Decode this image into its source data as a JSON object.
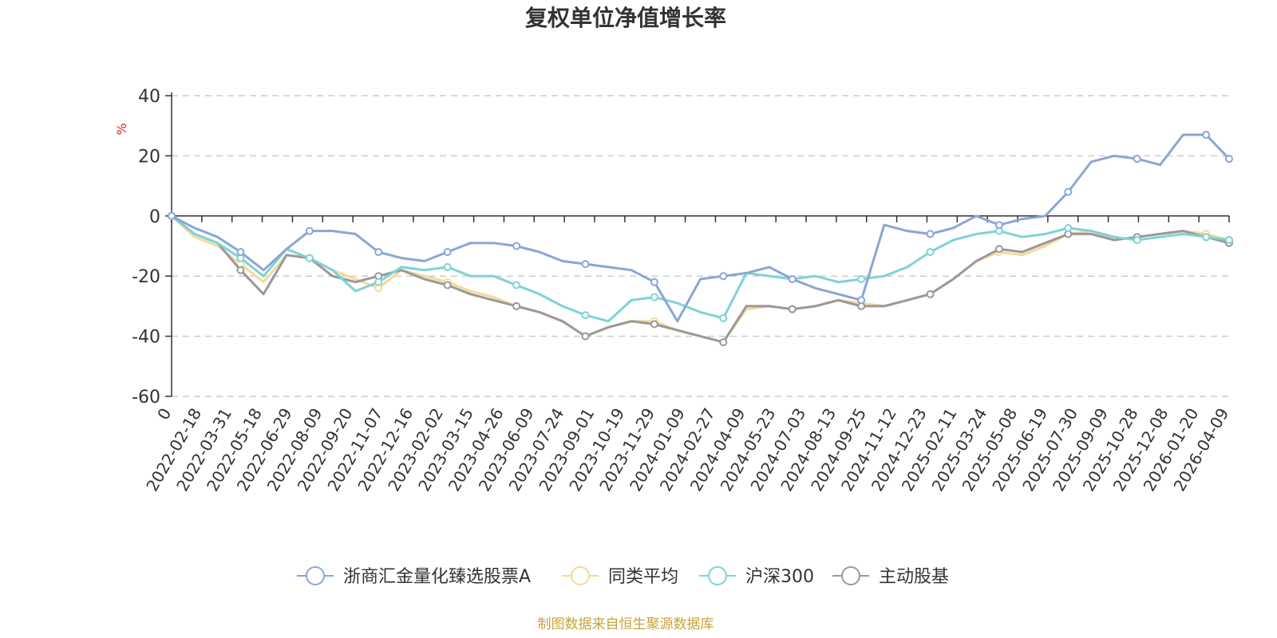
{
  "chart_data": {
    "type": "line",
    "title": "复权单位净值增长率",
    "ylabel": "%",
    "ylim": [
      -60,
      40
    ],
    "yticks": [
      40,
      20,
      0,
      -20,
      -40,
      -60
    ],
    "grid": true,
    "legend_position": "bottom-center",
    "source": "制图数据来自恒生聚源数据库",
    "x_tick_labels": [
      "0",
      "2022-02-18",
      "2022-03-31",
      "2022-05-18",
      "2022-06-29",
      "2022-08-09",
      "2022-09-20",
      "2022-11-07",
      "2022-12-16",
      "2023-02-02",
      "2023-03-15",
      "2023-04-26",
      "2023-06-09",
      "2023-07-24",
      "2023-09-01",
      "2023-10-19",
      "2023-11-29",
      "2024-01-09",
      "2024-02-27",
      "2024-04-09",
      "2024-05-23",
      "2024-07-03",
      "2024-08-13",
      "2024-09-25",
      "2024-11-12",
      "2024-12-23",
      "2025-02-11",
      "2025-03-24",
      "2025-05-08",
      "2025-06-19",
      "2025-07-30",
      "2025-09-09",
      "2025-10-28",
      "2025-12-08",
      "2026-01-20",
      "2026-04-09"
    ],
    "series": [
      {
        "name": "浙商汇金量化臻选股票A",
        "color": "#8aa6d6",
        "values": [
          0,
          -4,
          -7,
          -12,
          -18,
          -11,
          -5,
          -5,
          -6,
          -12,
          -14,
          -15,
          -12,
          -9,
          -9,
          -10,
          -12,
          -15,
          -16,
          -17,
          -18,
          -22,
          -35,
          -21,
          -20,
          -19,
          -17,
          -21,
          -24,
          -26,
          -28,
          -3,
          -5,
          -6,
          -4,
          0,
          -3,
          -1,
          0,
          8,
          18,
          20,
          19,
          17,
          27,
          27,
          19
        ]
      },
      {
        "name": "同类平均",
        "color": "#f8d89a",
        "values": [
          0,
          -7,
          -10,
          -16,
          -22,
          -13,
          -14,
          -18,
          -21,
          -24,
          -18,
          -20,
          -22,
          -25,
          -27,
          -30,
          -32,
          -35,
          -40,
          -37,
          -35,
          -35,
          -38,
          -40,
          -42,
          -31,
          -30,
          -31,
          -30,
          -28,
          -29,
          -30,
          -28,
          -26,
          -21,
          -15,
          -12,
          -13,
          -10,
          -6,
          -5,
          -8,
          -7,
          -6,
          -5,
          -6,
          -8
        ]
      },
      {
        "name": "沪深300",
        "color": "#7dd3d8",
        "values": [
          0,
          -6,
          -9,
          -14,
          -20,
          -11,
          -14,
          -18,
          -25,
          -22,
          -17,
          -18,
          -17,
          -20,
          -20,
          -23,
          -26,
          -30,
          -33,
          -35,
          -28,
          -27,
          -29,
          -32,
          -34,
          -19,
          -20,
          -21,
          -20,
          -22,
          -21,
          -20,
          -17,
          -12,
          -8,
          -6,
          -5,
          -7,
          -6,
          -4,
          -5,
          -7,
          -8,
          -7,
          -6,
          -7,
          -8
        ]
      },
      {
        "name": "主动股基",
        "color": "#999999",
        "values": [
          0,
          -6,
          -9,
          -18,
          -26,
          -13,
          -14,
          -20,
          -22,
          -20,
          -18,
          -21,
          -23,
          -26,
          -28,
          -30,
          -32,
          -35,
          -40,
          -37,
          -35,
          -36,
          -38,
          -40,
          -42,
          -30,
          -30,
          -31,
          -30,
          -28,
          -30,
          -30,
          -28,
          -26,
          -21,
          -15,
          -11,
          -12,
          -9,
          -6,
          -6,
          -8,
          -7,
          -6,
          -5,
          -7,
          -9
        ]
      }
    ]
  }
}
